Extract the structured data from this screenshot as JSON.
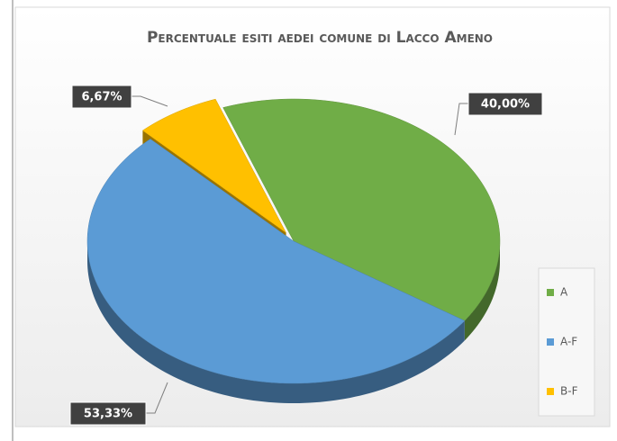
{
  "chart_data": {
    "type": "pie3d",
    "title": "Percentuale esiti aedei comune di Lacco Ameno",
    "categories": [
      "A",
      "A-F",
      "B-F"
    ],
    "values": [
      40.0,
      53.33,
      6.67
    ],
    "value_labels": [
      "40,00%",
      "53,33%",
      "6,67%"
    ],
    "colors": [
      "#70ad47",
      "#5b9bd5",
      "#ffc000"
    ],
    "exploded_slice": "B-F",
    "legend": "right"
  }
}
